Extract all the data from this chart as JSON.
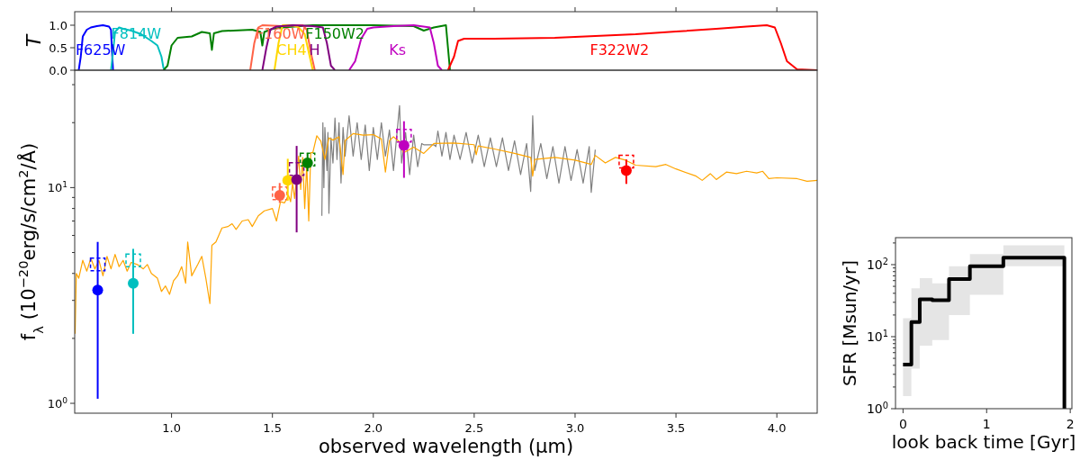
{
  "chart_data": [
    {
      "type": "line",
      "ylabel": "T",
      "xlim": [
        0.52,
        4.2
      ],
      "ylim": [
        0,
        1.3
      ],
      "xticks": [
        1.0,
        1.5,
        2.0,
        2.5,
        3.0,
        3.5,
        4.0
      ],
      "yticks": [
        {
          "value": 0,
          "label": "0.0"
        },
        {
          "value": 0.5,
          "label": "0.5"
        },
        {
          "value": 1,
          "label": "1.0"
        }
      ],
      "tick_labels": "y",
      "series": [
        {
          "name": "F625W",
          "color": "#0000ff",
          "x": [
            0.54,
            0.55,
            0.56,
            0.58,
            0.6,
            0.63,
            0.66,
            0.69,
            0.7,
            0.705,
            0.71
          ],
          "values": [
            0,
            0.3,
            0.75,
            0.9,
            0.95,
            0.98,
            1.0,
            0.97,
            0.9,
            0.4,
            0
          ]
        },
        {
          "name": "F814W",
          "color": "#00bfbf",
          "x": [
            0.7,
            0.71,
            0.72,
            0.74,
            0.76,
            0.8,
            0.85,
            0.9,
            0.93,
            0.95,
            0.96,
            0.97
          ],
          "values": [
            0,
            0.4,
            0.85,
            0.95,
            0.92,
            0.88,
            0.8,
            0.65,
            0.55,
            0.3,
            0.05,
            0
          ]
        },
        {
          "name": "F150W2",
          "color": "#008000",
          "x": [
            0.96,
            0.98,
            1.0,
            1.03,
            1.1,
            1.15,
            1.19,
            1.2,
            1.21,
            1.25,
            1.4,
            1.44,
            1.45,
            1.46,
            1.5,
            1.55,
            1.7,
            2.0,
            2.2,
            2.25,
            2.3,
            2.36,
            2.37,
            2.38
          ],
          "values": [
            0,
            0.1,
            0.55,
            0.72,
            0.75,
            0.85,
            0.82,
            0.45,
            0.82,
            0.87,
            0.9,
            0.85,
            0.55,
            0.85,
            0.92,
            0.95,
            1.0,
            1.0,
            0.98,
            0.88,
            0.95,
            1.0,
            0.5,
            0
          ]
        },
        {
          "name": "F160W",
          "color": "#ff6347",
          "x": [
            1.39,
            1.41,
            1.43,
            1.45,
            1.55,
            1.65,
            1.67,
            1.69,
            1.71
          ],
          "values": [
            0,
            0.6,
            0.95,
            1.0,
            0.98,
            1.0,
            0.9,
            0.4,
            0
          ]
        },
        {
          "name": "CH4",
          "color": "#ffd700",
          "x": [
            1.51,
            1.53,
            1.55,
            1.6,
            1.63,
            1.66,
            1.68,
            1.7
          ],
          "values": [
            0,
            0.6,
            1.0,
            1.0,
            0.95,
            0.8,
            0.4,
            0
          ]
        },
        {
          "name": "H",
          "color": "#800080",
          "x": [
            1.45,
            1.47,
            1.49,
            1.52,
            1.6,
            1.7,
            1.75,
            1.77,
            1.79,
            1.81
          ],
          "values": [
            0,
            0.5,
            0.9,
            0.97,
            1.0,
            0.98,
            0.95,
            0.6,
            0.1,
            0
          ]
        },
        {
          "name": "Ks",
          "color": "#bf00bf",
          "x": [
            1.88,
            1.91,
            1.94,
            1.97,
            2.0,
            2.1,
            2.2,
            2.28,
            2.3,
            2.32,
            2.34
          ],
          "values": [
            0,
            0.2,
            0.7,
            0.92,
            0.95,
            0.98,
            1.0,
            0.95,
            0.6,
            0.1,
            0
          ]
        },
        {
          "name": "F322W2",
          "color": "#ff0000",
          "x": [
            2.37,
            2.4,
            2.42,
            2.45,
            2.6,
            2.9,
            3.1,
            3.3,
            3.5,
            3.7,
            3.85,
            3.95,
            3.99,
            4.02,
            4.05,
            4.1,
            4.2
          ],
          "values": [
            0,
            0.3,
            0.65,
            0.7,
            0.7,
            0.72,
            0.76,
            0.8,
            0.86,
            0.92,
            0.97,
            1.0,
            0.95,
            0.6,
            0.2,
            0.02,
            0
          ]
        }
      ]
    },
    {
      "type": "line",
      "xlabel": "observed wavelength (μm)",
      "ylabel": "f$_{λ}$ (10$^{−20}$erg/s/cm$^{2}$/Å)",
      "xlim": [
        0.52,
        4.2
      ],
      "ylim": [
        0.9,
        35
      ],
      "log": true,
      "xticks": [
        {
          "value": 1,
          "label": "1.0"
        },
        {
          "value": 1.5,
          "label": "1.5"
        },
        {
          "value": 2,
          "label": "2.0"
        },
        {
          "value": 2.5,
          "label": "2.5"
        },
        {
          "value": 3,
          "label": "3.0"
        },
        {
          "value": 3.5,
          "label": "3.5"
        },
        {
          "value": 4,
          "label": "4.0"
        }
      ],
      "yticks": [
        {
          "value": 1,
          "label": "10$^{0}$"
        },
        {
          "value": 2,
          "label": null
        },
        {
          "value": 3,
          "label": null
        },
        {
          "value": 4,
          "label": null
        },
        {
          "value": 5,
          "label": null
        },
        {
          "value": 6,
          "label": null
        },
        {
          "value": 7,
          "label": null
        },
        {
          "value": 8,
          "label": null
        },
        {
          "value": 9,
          "label": null
        },
        {
          "value": 10,
          "label": "10$^{1}$"
        },
        {
          "value": 20,
          "label": null
        },
        {
          "value": 30,
          "label": null
        }
      ],
      "series": [
        {
          "color": "#808080",
          "x": [
            1.745,
            1.75,
            1.755,
            1.76,
            1.77,
            1.775,
            1.78,
            1.79,
            1.8,
            1.81,
            1.82,
            1.83,
            1.84,
            1.85,
            1.86,
            1.88,
            1.9,
            1.92,
            1.94,
            1.96,
            1.98,
            2.0,
            2.02,
            2.04,
            2.06,
            2.08,
            2.1,
            2.12,
            2.13,
            2.14,
            2.16,
            2.18,
            2.2,
            2.22,
            2.24,
            2.25,
            2.3,
            2.31,
            2.32,
            2.34,
            2.36,
            2.38,
            2.4,
            2.43,
            2.46,
            2.49,
            2.52,
            2.55,
            2.58,
            2.61,
            2.64,
            2.67,
            2.7,
            2.73,
            2.76,
            2.78,
            2.79,
            2.8,
            2.83,
            2.86,
            2.89,
            2.92,
            2.95,
            2.98,
            3.01,
            3.04,
            3.07,
            3.08,
            3.1
          ],
          "values": [
            7.4,
            20.0,
            10,
            19,
            12,
            18,
            7.6,
            17,
            13,
            21,
            13.5,
            20,
            10.5,
            19,
            14,
            21.5,
            14,
            20,
            13.5,
            19.5,
            12,
            19,
            13.5,
            20,
            14,
            18.5,
            12,
            19,
            24,
            13,
            18,
            11.5,
            17.5,
            12.5,
            16,
            15.8,
            15.8,
            15.5,
            18.3,
            14,
            18,
            13.5,
            17.5,
            13.5,
            18,
            13,
            17.5,
            12.5,
            17,
            12.5,
            17,
            12,
            16.5,
            11.5,
            16,
            9.6,
            21.5,
            12,
            16,
            11,
            15.5,
            10.5,
            15.5,
            10.8,
            15,
            10.5,
            15.5,
            9.5,
            15
          ]
        },
        {
          "color": "#ffa500",
          "x": [
            0.522,
            0.528,
            0.54,
            0.56,
            0.58,
            0.6,
            0.62,
            0.64,
            0.66,
            0.68,
            0.7,
            0.72,
            0.74,
            0.76,
            0.78,
            0.8,
            0.83,
            0.86,
            0.88,
            0.9,
            0.93,
            0.95,
            0.97,
            0.99,
            1.01,
            1.03,
            1.05,
            1.07,
            1.08,
            1.1,
            1.13,
            1.15,
            1.17,
            1.19,
            1.2,
            1.22,
            1.25,
            1.28,
            1.3,
            1.32,
            1.35,
            1.38,
            1.4,
            1.43,
            1.46,
            1.5,
            1.52,
            1.54,
            1.56,
            1.58,
            1.59,
            1.6,
            1.61,
            1.63,
            1.64,
            1.65,
            1.66,
            1.67,
            1.68,
            1.69,
            1.7,
            1.72,
            1.74,
            1.76,
            1.78,
            1.8,
            1.83,
            1.85,
            1.86,
            1.9,
            1.95,
            2.0,
            2.04,
            2.06,
            2.08,
            2.1,
            2.13,
            2.15,
            2.2,
            2.25,
            2.3,
            2.4,
            2.5,
            2.51,
            2.52,
            2.6,
            2.7,
            2.78,
            2.79,
            2.8,
            2.9,
            3.0,
            3.08,
            3.1,
            3.15,
            3.2,
            3.25,
            3.3,
            3.4,
            3.45,
            3.5,
            3.6,
            3.63,
            3.67,
            3.7,
            3.75,
            3.8,
            3.85,
            3.9,
            3.93,
            3.96,
            4.0,
            4.1,
            4.15,
            4.2
          ],
          "values": [
            2.1,
            4.0,
            3.8,
            4.6,
            4.1,
            4.7,
            4.2,
            4.6,
            3.9,
            4.8,
            4.2,
            4.9,
            4.3,
            4.6,
            4.1,
            4.5,
            4.4,
            4.2,
            4.4,
            4.0,
            3.8,
            3.3,
            3.5,
            3.2,
            3.7,
            3.9,
            4.3,
            3.6,
            5.6,
            3.9,
            4.4,
            4.8,
            3.8,
            2.9,
            5.4,
            5.6,
            6.5,
            6.6,
            6.8,
            6.4,
            7.0,
            7.1,
            6.6,
            7.4,
            7.8,
            8.0,
            7.0,
            8.6,
            8.5,
            9.2,
            8.6,
            10.5,
            8.9,
            14,
            9.8,
            13.8,
            8.0,
            12.8,
            7.0,
            14.5,
            14.5,
            17.4,
            16.4,
            13.5,
            17.0,
            16.6,
            17.2,
            11.5,
            16.5,
            17.8,
            17.5,
            17.6,
            16.8,
            11.8,
            16.5,
            17.2,
            16.3,
            14.5,
            15.4,
            14.4,
            16.0,
            16.1,
            15.8,
            14.2,
            15.6,
            15.1,
            14.4,
            13.8,
            11.3,
            13.5,
            13.8,
            13.4,
            12.8,
            14.1,
            13.0,
            13.8,
            13.4,
            12.7,
            12.5,
            12.8,
            12.2,
            11.3,
            10.8,
            11.6,
            10.9,
            11.8,
            11.6,
            11.9,
            11.7,
            11.9,
            11.0,
            11.1,
            11.0,
            10.7,
            10.8
          ]
        },
        {
          "type": "scatter",
          "marker": "square",
          "line_style": "dashed",
          "x": [
            0.634,
            0.81,
            1.536,
            1.62,
            1.674,
            2.152,
            3.254
          ],
          "values": [
            4.4,
            4.6,
            9.4,
            12.2,
            13.5,
            17.4,
            13.2
          ],
          "colors": [
            "#0000ff",
            "#00bfbf",
            "#ff6347",
            "#800080",
            "#008000",
            "#bf00bf",
            "#ff0000"
          ]
        },
        {
          "type": "scatter",
          "marker": "circle",
          "x": [
            0.634,
            0.81,
            1.536,
            1.576,
            1.62,
            1.674,
            2.152,
            3.254
          ],
          "values": [
            3.35,
            3.6,
            9.2,
            10.8,
            10.9,
            13.0,
            15.7,
            12.0
          ],
          "errors": [
            [
              1.05,
              5.6
            ],
            [
              2.1,
              5.2
            ],
            [
              8.5,
              10.5
            ],
            [
              8.7,
              13.6
            ],
            [
              6.2,
              15.6
            ],
            [
              11.9,
              14.4
            ],
            [
              11.1,
              20.3
            ],
            [
              10.4,
              13.5
            ]
          ],
          "colors": [
            "#0000ff",
            "#00bfbf",
            "#ff6347",
            "#ffd700",
            "#800080",
            "#008000",
            "#bf00bf",
            "#ff0000"
          ]
        }
      ]
    },
    {
      "type": "step",
      "xlabel": "look back time [Gyr]",
      "ylabel": "SFR [Msun/yr]",
      "xlim": [
        -0.09,
        2.02
      ],
      "ylim": [
        1,
        237
      ],
      "log": true,
      "xticks": [
        0,
        1,
        2
      ],
      "yticks": [
        {
          "value": 1,
          "label": "10$^{0}$"
        },
        {
          "value": 2,
          "label": null
        },
        {
          "value": 3,
          "label": null
        },
        {
          "value": 4,
          "label": null
        },
        {
          "value": 5,
          "label": null
        },
        {
          "value": 6,
          "label": null
        },
        {
          "value": 7,
          "label": null
        },
        {
          "value": 8,
          "label": null
        },
        {
          "value": 9,
          "label": null
        },
        {
          "value": 10,
          "label": "10$^{1}$"
        },
        {
          "value": 20,
          "label": null
        },
        {
          "value": 30,
          "label": null
        },
        {
          "value": 40,
          "label": null
        },
        {
          "value": 50,
          "label": null
        },
        {
          "value": 60,
          "label": null
        },
        {
          "value": 70,
          "label": null
        },
        {
          "value": 80,
          "label": null
        },
        {
          "value": 90,
          "label": null
        },
        {
          "value": 100,
          "label": "10$^{2}$"
        },
        {
          "value": 200,
          "label": null
        }
      ],
      "series": [
        {
          "color": "#000000",
          "x": [
            0,
            0.1,
            0.2,
            0.35,
            0.55,
            0.8,
            1.2,
            1.93,
            1.93
          ],
          "values": [
            4.1,
            16,
            33,
            32,
            63,
            95,
            125,
            125,
            1
          ],
          "lower": [
            1.5,
            3.6,
            7.5,
            9,
            20,
            38,
            95,
            95,
            95
          ],
          "upper": [
            18,
            47,
            65,
            55,
            95,
            140,
            185,
            185,
            185
          ]
        }
      ]
    }
  ]
}
